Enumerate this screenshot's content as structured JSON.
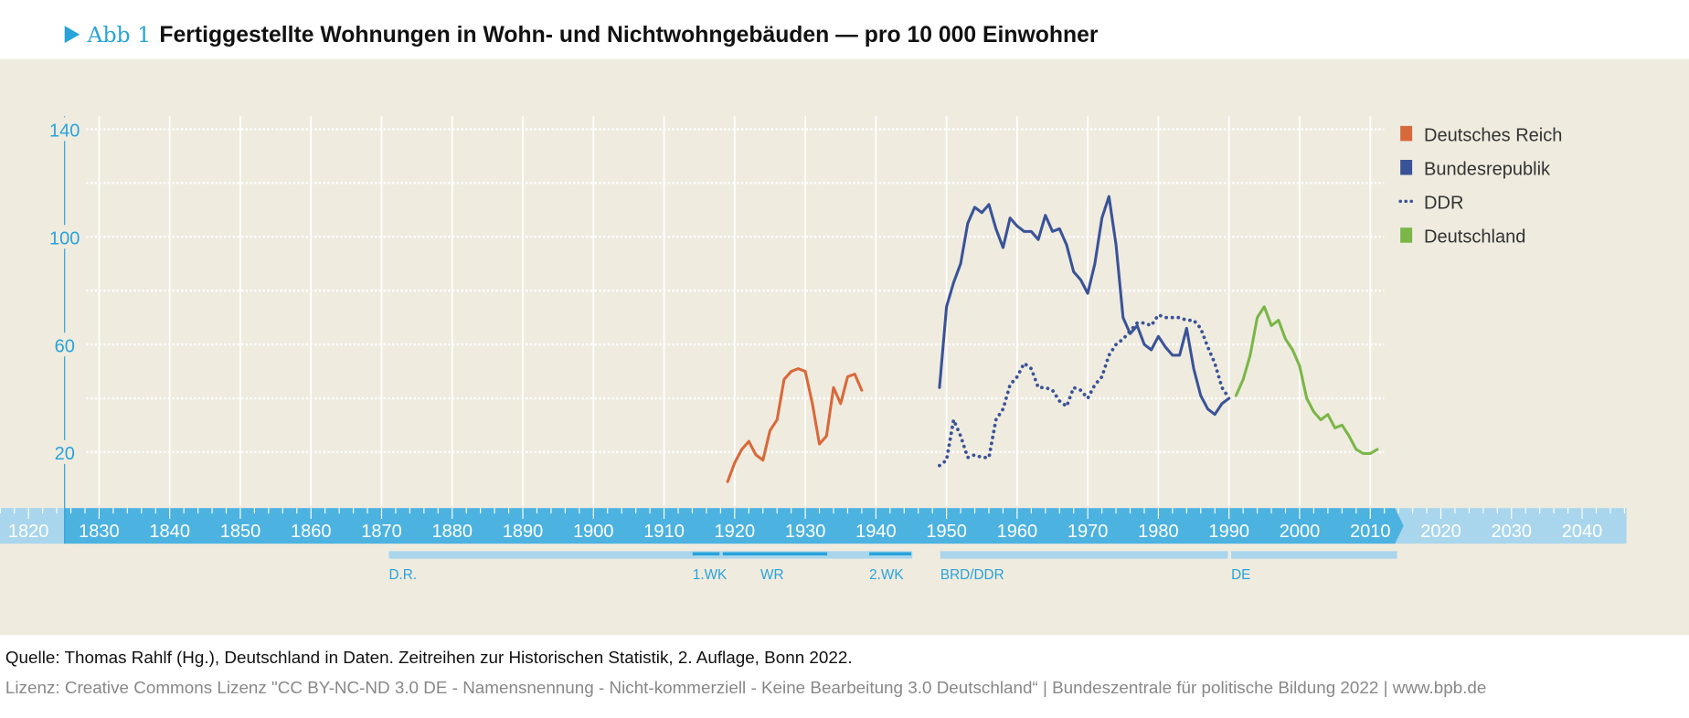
{
  "header": {
    "figure_label": "Abb 1",
    "title": "Fertiggestellte Wohnungen in Wohn- und Nichtwohngebäuden — pro 10 000 Einwohner"
  },
  "footer": {
    "source": "Quelle: Thomas Rahlf (Hg.), Deutschland in Daten. Zeitreihen zur Historischen Statistik, 2. Auflage, Bonn 2022.",
    "license": "Lizenz: Creative Commons Lizenz \"CC BY-NC-ND 3.0 DE - Namensnennung - Nicht-kommerziell - Keine Bearbeitung 3.0 Deutschland“ | Bundeszentrale für politische Bildung 2022 | www.bpb.de"
  },
  "colors": {
    "background": "#efebdf",
    "axis": "#29a3db",
    "timeline": "#4cb2e0",
    "timeline_light": "#a9d6ec",
    "reich": "#d9693a",
    "brd": "#3a5398",
    "ddr": "#3a5398",
    "de": "#7ab648"
  },
  "chart_data": {
    "type": "line",
    "title": "Fertiggestellte Wohnungen in Wohn- und Nichtwohngebäuden — pro 10 000 Einwohner",
    "ylim": [
      0,
      140
    ],
    "yticks": [
      "140",
      "100",
      "60",
      "20"
    ],
    "ytick_values": [
      140,
      100,
      60,
      20
    ],
    "xlim": [
      1815,
      2050
    ],
    "xticks": [
      "1820",
      "1830",
      "1840",
      "1850",
      "1860",
      "1870",
      "1880",
      "1890",
      "1900",
      "1910",
      "1920",
      "1930",
      "1940",
      "1950",
      "1960",
      "1970",
      "1980",
      "1990",
      "2000",
      "2010",
      "2020",
      "2030",
      "2040"
    ],
    "grid": true,
    "legend_position": "top-right",
    "series": [
      {
        "name": "Deutsches Reich",
        "style": "solid",
        "color": "#d9693a",
        "x": [
          1919,
          1920,
          1921,
          1922,
          1923,
          1924,
          1925,
          1926,
          1927,
          1928,
          1929,
          1930,
          1931,
          1932,
          1933,
          1934,
          1935,
          1936,
          1937,
          1938
        ],
        "y": [
          9,
          16,
          21,
          24,
          19,
          17,
          28,
          32,
          47,
          50,
          51,
          50,
          38,
          23,
          26,
          44,
          38,
          48,
          49,
          43
        ]
      },
      {
        "name": "Bundesrepublik",
        "style": "solid",
        "color": "#3a5398",
        "x": [
          1949,
          1950,
          1951,
          1952,
          1953,
          1954,
          1955,
          1956,
          1957,
          1958,
          1959,
          1960,
          1961,
          1962,
          1963,
          1964,
          1965,
          1966,
          1967,
          1968,
          1969,
          1970,
          1971,
          1972,
          1973,
          1974,
          1975,
          1976,
          1977,
          1978,
          1979,
          1980,
          1981,
          1982,
          1983,
          1984,
          1985,
          1986,
          1987,
          1988,
          1989,
          1990
        ],
        "y": [
          44,
          74,
          83,
          90,
          105,
          111,
          109,
          112,
          103,
          96,
          107,
          104,
          102,
          102,
          99,
          108,
          102,
          103,
          97,
          87,
          84,
          79,
          90,
          107,
          115,
          97,
          70,
          64,
          67,
          60,
          58,
          63,
          59,
          56,
          56,
          66,
          51,
          41,
          36,
          34,
          38,
          40
        ]
      },
      {
        "name": "DDR",
        "style": "dotted",
        "color": "#3a5398",
        "x": [
          1949,
          1950,
          1951,
          1952,
          1953,
          1954,
          1955,
          1956,
          1957,
          1958,
          1959,
          1960,
          1961,
          1962,
          1963,
          1964,
          1965,
          1966,
          1967,
          1968,
          1969,
          1970,
          1971,
          1972,
          1973,
          1974,
          1975,
          1976,
          1977,
          1978,
          1979,
          1980,
          1981,
          1982,
          1983,
          1984,
          1985,
          1986,
          1987,
          1988,
          1989,
          1990
        ],
        "y": [
          15,
          17,
          32,
          26,
          18,
          19,
          18,
          18,
          32,
          36,
          45,
          48,
          53,
          51,
          44,
          44,
          43,
          39,
          37,
          44,
          43,
          40,
          45,
          48,
          56,
          60,
          62,
          65,
          68,
          68,
          67,
          71,
          70,
          70,
          70,
          69,
          69,
          66,
          59,
          53,
          44,
          40
        ]
      },
      {
        "name": "Deutschland",
        "style": "solid",
        "color": "#7ab648",
        "x": [
          1991,
          1992,
          1993,
          1994,
          1995,
          1996,
          1997,
          1998,
          1999,
          2000,
          2001,
          2002,
          2003,
          2004,
          2005,
          2006,
          2007,
          2008,
          2009,
          2010,
          2011
        ],
        "y": [
          41,
          47,
          56,
          70,
          74,
          67,
          69,
          62,
          58,
          52,
          40,
          35,
          32,
          34,
          29,
          30,
          26,
          21,
          19.5,
          19.5,
          21
        ]
      }
    ],
    "periods": [
      {
        "label": "D.R.",
        "start": 1871,
        "end": 1945,
        "emphasis": false
      },
      {
        "label": "1.WK",
        "start": 1914,
        "end": 1918,
        "emphasis": true
      },
      {
        "label": "WR",
        "start": 1919,
        "end": 1933,
        "emphasis": true
      },
      {
        "label": "2.WK",
        "start": 1939,
        "end": 1945,
        "emphasis": true
      },
      {
        "label": "BRD/DDR",
        "start": 1949,
        "end": 1990,
        "emphasis": false
      },
      {
        "label": "DE",
        "start": 1990,
        "end": 2013,
        "emphasis": false
      }
    ]
  }
}
